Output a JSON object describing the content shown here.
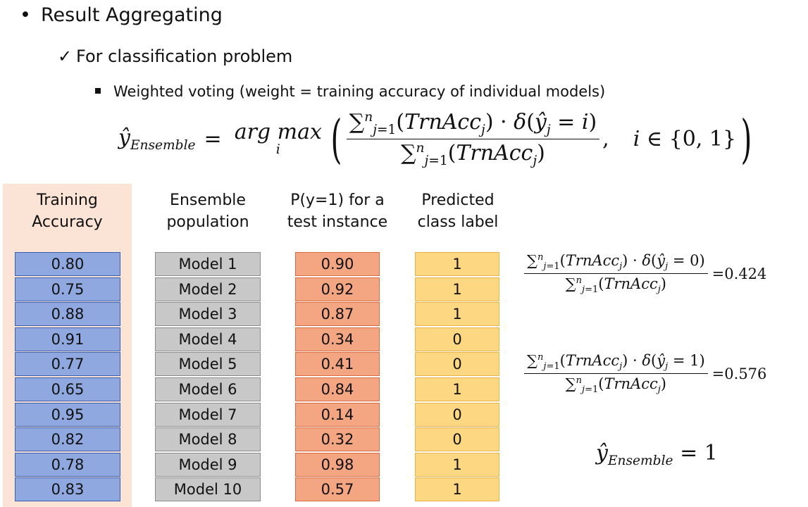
{
  "bullets": {
    "level1": "Result Aggregating",
    "level2": "For classification problem",
    "level3": "Weighted voting (weight = training accuracy of individual models)"
  },
  "formula": {
    "lhs": "ŷ_Ensemble",
    "equals": "=",
    "argmax": "arg max",
    "argmax_sub": "i",
    "numerator": "∑_{j=1}^{n}(TrnAcc_j) · δ(ŷ_j = i)",
    "denominator": "∑_{j=1}^{n}(TrnAcc_j)",
    "condition": "i ∈ {0, 1}"
  },
  "table": {
    "headers": {
      "accuracy": [
        "Training",
        "Accuracy"
      ],
      "population": [
        "Ensemble",
        "population"
      ],
      "probability": [
        "P(y=1) for a",
        "test instance"
      ],
      "label": [
        "Predicted",
        "class label"
      ]
    },
    "rows": [
      {
        "accuracy": "0.80",
        "model": "Model 1",
        "prob": "0.90",
        "label": "1"
      },
      {
        "accuracy": "0.75",
        "model": "Model 2",
        "prob": "0.92",
        "label": "1"
      },
      {
        "accuracy": "0.88",
        "model": "Model 3",
        "prob": "0.87",
        "label": "1"
      },
      {
        "accuracy": "0.91",
        "model": "Model 4",
        "prob": "0.34",
        "label": "0"
      },
      {
        "accuracy": "0.77",
        "model": "Model 5",
        "prob": "0.41",
        "label": "0"
      },
      {
        "accuracy": "0.65",
        "model": "Model 6",
        "prob": "0.84",
        "label": "1"
      },
      {
        "accuracy": "0.95",
        "model": "Model 7",
        "prob": "0.14",
        "label": "0"
      },
      {
        "accuracy": "0.82",
        "model": "Model 8",
        "prob": "0.32",
        "label": "0"
      },
      {
        "accuracy": "0.78",
        "model": "Model 9",
        "prob": "0.98",
        "label": "1"
      },
      {
        "accuracy": "0.83",
        "model": "Model 10",
        "prob": "0.57",
        "label": "1"
      }
    ]
  },
  "side_formulas": [
    {
      "class": "0",
      "value": "0.424"
    },
    {
      "class": "1",
      "value": "0.576"
    }
  ],
  "result": {
    "lhs": "ŷ_Ensemble",
    "value": "1"
  },
  "colors": {
    "accuracy_panel": "#fbe3d6",
    "accuracy_cell": "#8fa9e0",
    "model_cell": "#c8c8c8",
    "prob_cell": "#f4a582",
    "label_cell": "#fdd782"
  }
}
